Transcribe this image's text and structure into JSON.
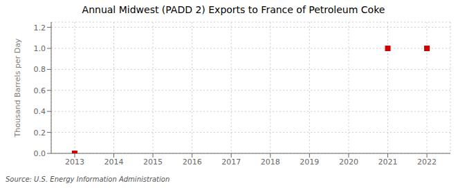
{
  "chart_data": {
    "type": "scatter",
    "title": "Annual Midwest (PADD 2) Exports to France of Petroleum Coke",
    "ylabel": "Thousand Barrels per Day",
    "annotations": [
      "Source: U.S. Energy Information Administration"
    ],
    "x": [
      2013,
      2021,
      2022
    ],
    "values": [
      0.0,
      1.0,
      1.0
    ],
    "color": "#cc0000",
    "marker": "square",
    "xlim": [
      2012.4,
      2022.6
    ],
    "xticks": [
      2013,
      2014,
      2015,
      2016,
      2017,
      2018,
      2019,
      2020,
      2021,
      2022
    ],
    "ylim": [
      0.0,
      1.25
    ],
    "yticks": [
      {
        "value": 0.0,
        "label": "0.0"
      },
      0.2,
      0.4,
      0.6,
      {
        "value": 0.8,
        "label": "0.8"
      },
      {
        "value": 1.0,
        "label": "1.0"
      },
      {
        "value": 1.2,
        "label": "1.2"
      }
    ],
    "grid": true
  }
}
